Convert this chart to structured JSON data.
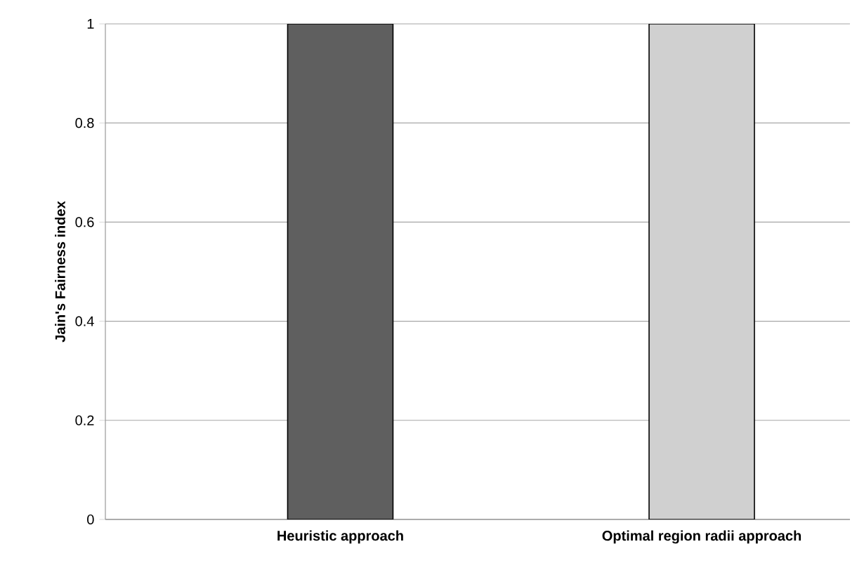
{
  "chart_data": {
    "type": "bar",
    "ylabel": "Jain's Fairness index",
    "categories": [
      "Heuristic approach",
      "Optimal region radii approach"
    ],
    "values": [
      1,
      1
    ],
    "colors": [
      "#5f5f5f",
      "#d0d0d0"
    ],
    "ylim": [
      0,
      1
    ],
    "yticks": [
      0,
      0.2,
      0.4,
      0.6,
      0.8,
      1
    ],
    "grid": "y"
  }
}
